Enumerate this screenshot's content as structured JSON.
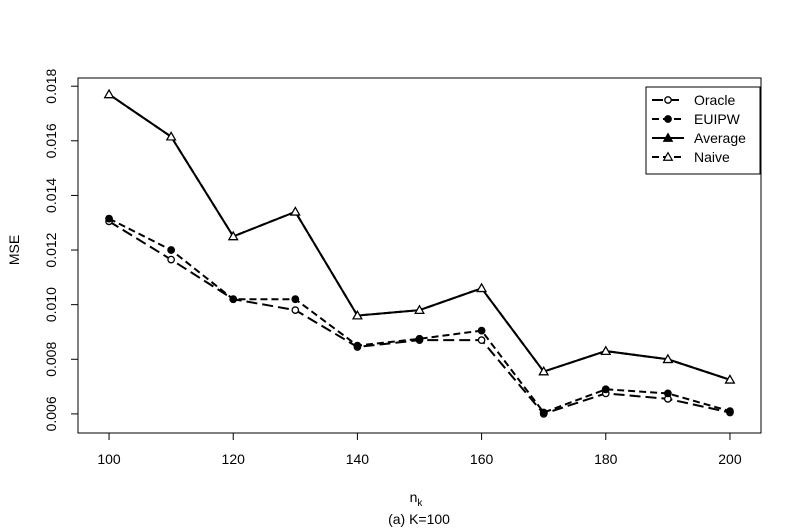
{
  "chart_data": {
    "type": "line",
    "title": "",
    "caption": "(a) K=100",
    "xlabel_main": "n",
    "xlabel_sub": "k",
    "ylabel": "MSE",
    "xlim": [
      95,
      205
    ],
    "ylim": [
      0.0053,
      0.0183
    ],
    "x": [
      100,
      110,
      120,
      130,
      140,
      150,
      160,
      170,
      180,
      190,
      200
    ],
    "xticks": [
      100,
      120,
      140,
      160,
      180,
      200
    ],
    "xtick_labels": [
      "100",
      "120",
      "140",
      "160",
      "180",
      "200"
    ],
    "yticks": [
      0.006,
      0.008,
      0.01,
      0.012,
      0.014,
      0.016,
      0.018
    ],
    "ytick_labels": [
      "0.006",
      "0.008",
      "0.010",
      "0.012",
      "0.014",
      "0.016",
      "0.018"
    ],
    "legend_position": "top-right",
    "series": [
      {
        "name": "Oracle",
        "marker": "circle-open",
        "dash": "long-dash",
        "values": [
          0.01305,
          0.01165,
          0.0102,
          0.0098,
          0.00845,
          0.0087,
          0.0087,
          0.006,
          0.00675,
          0.00655,
          0.00605
        ]
      },
      {
        "name": "EUIPW",
        "marker": "circle-filled",
        "dash": "dash",
        "values": [
          0.01315,
          0.012,
          0.0102,
          0.0102,
          0.0085,
          0.00875,
          0.00905,
          0.00605,
          0.0069,
          0.00675,
          0.0061
        ]
      },
      {
        "name": "Average",
        "marker": "triangle-filled",
        "dash": "solid",
        "values": [
          0.0177,
          0.01615,
          0.0125,
          0.0134,
          0.0096,
          0.0098,
          0.0106,
          0.00755,
          0.0083,
          0.008,
          0.00725
        ]
      },
      {
        "name": "Naive",
        "marker": "triangle-open",
        "dash": "dash",
        "values": [
          0.0177,
          0.01615,
          0.0125,
          0.0134,
          0.0096,
          0.0098,
          0.0106,
          0.00755,
          0.0083,
          0.008,
          0.00725
        ]
      }
    ]
  }
}
